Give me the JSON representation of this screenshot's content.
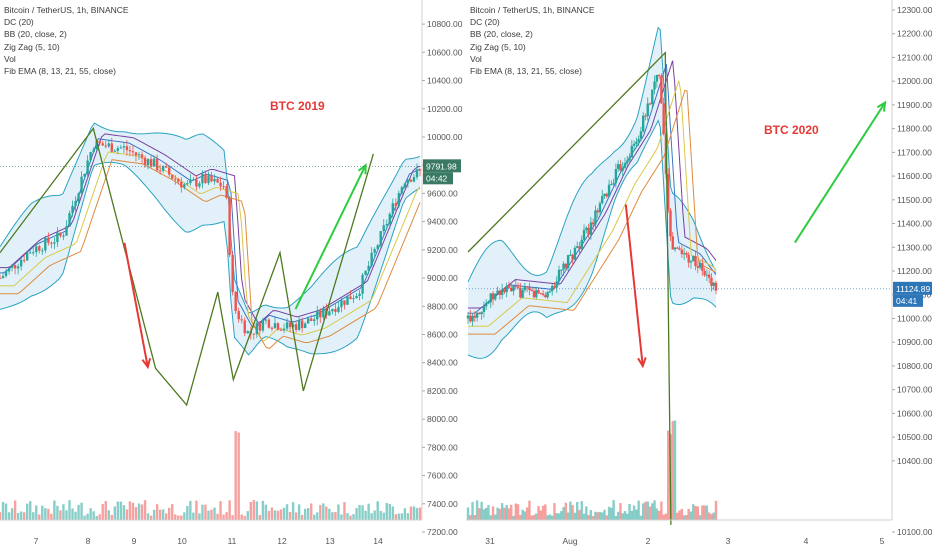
{
  "panes": [
    {
      "id": "left",
      "legend": [
        "Bitcoin / TetherUS, 1h, BINANCE",
        "DC (20)",
        "BB (20, close, 2)",
        "Zig Zag (5, 10)",
        "Vol",
        "Fib EMA (8, 13, 21, 55, close)"
      ],
      "annotation": "BTC 2019",
      "price_label": "9791.98",
      "countdown": "04:42",
      "chart_data": {
        "type": "candlestick",
        "title": "Bitcoin / TetherUS, 1h, BINANCE",
        "ylim": [
          7200,
          10900
        ],
        "y_ticks": [
          "10800.00",
          "10600.00",
          "10400.00",
          "10200.00",
          "10000.00",
          "9800.00",
          "9600.00",
          "9400.00",
          "9200.00",
          "9000.00",
          "8800.00",
          "8600.00",
          "8400.00",
          "8200.00",
          "8000.00",
          "7800.00",
          "7600.00",
          "7400.00",
          "7200.00"
        ],
        "x_ticks": [
          "7",
          "8",
          "9",
          "10",
          "11",
          "12",
          "13",
          "14"
        ],
        "last_price": 9791.98,
        "zigzag_points": [
          [
            6.6,
            9180
          ],
          [
            7.8,
            10060
          ],
          [
            8.6,
            8360
          ],
          [
            9.0,
            8100
          ],
          [
            9.4,
            8900
          ],
          [
            9.6,
            8280
          ],
          [
            10.2,
            9180
          ],
          [
            10.5,
            8200
          ],
          [
            11.4,
            9880
          ]
        ],
        "price_path": [
          [
            6.6,
            9000
          ],
          [
            7.0,
            9200
          ],
          [
            7.4,
            9300
          ],
          [
            7.8,
            9950
          ],
          [
            8.2,
            9920
          ],
          [
            8.6,
            9800
          ],
          [
            9.0,
            9650
          ],
          [
            9.2,
            9700
          ],
          [
            9.5,
            9650
          ],
          [
            9.6,
            8800
          ],
          [
            9.8,
            8600
          ],
          [
            10.0,
            8700
          ],
          [
            10.3,
            8650
          ],
          [
            10.6,
            8700
          ],
          [
            10.9,
            8800
          ],
          [
            11.2,
            8900
          ],
          [
            11.5,
            9300
          ],
          [
            11.8,
            9700
          ],
          [
            12.0,
            9750
          ]
        ],
        "arrows": [
          {
            "color": "#e53935",
            "from": [
              8.2,
              9250
            ],
            "to": [
              8.5,
              8370
            ]
          },
          {
            "color": "#2ecc40",
            "from": [
              10.4,
              8780
            ],
            "to": [
              11.3,
              9800
            ]
          }
        ],
        "volume_spike_x": 9.65
      }
    },
    {
      "id": "right",
      "legend": [
        "Bitcoin / TetherUS, 1h, BINANCE",
        "DC (20)",
        "BB (20, close, 2)",
        "Zig Zag (5, 10)",
        "Vol",
        "Fib EMA (8, 13, 21, 55, close)"
      ],
      "annotation": "BTC 2020",
      "price_label": "11124.89",
      "countdown": "04:41",
      "chart_data": {
        "type": "candlestick",
        "title": "Bitcoin / TetherUS, 1h, BINANCE",
        "ylim": [
          10100,
          12300
        ],
        "y_ticks": [
          "12300.00",
          "12200.00",
          "12100.00",
          "12000.00",
          "11900.00",
          "11800.00",
          "11700.00",
          "11600.00",
          "11500.00",
          "11400.00",
          "11300.00",
          "11200.00",
          "11100.00",
          "11000.00",
          "10900.00",
          "10800.00",
          "10700.00",
          "10600.00",
          "10500.00",
          "10400.00",
          "10100.00"
        ],
        "x_ticks": [
          "31",
          "Aug",
          "2",
          "3",
          "4",
          "5"
        ],
        "last_price": 11124.89,
        "zigzag_points": [
          [
            30.7,
            11280
          ],
          [
            32.45,
            12120
          ],
          [
            32.5,
            10130
          ]
        ],
        "price_path": [
          [
            30.7,
            11000
          ],
          [
            31.0,
            11120
          ],
          [
            31.4,
            11100
          ],
          [
            31.8,
            11400
          ],
          [
            32.0,
            11600
          ],
          [
            32.2,
            11750
          ],
          [
            32.4,
            12050
          ],
          [
            32.5,
            11300
          ],
          [
            32.7,
            11250
          ],
          [
            32.9,
            11124.89
          ]
        ],
        "arrows": [
          {
            "color": "#e53935",
            "from": [
              32.1,
              11480
            ],
            "to": [
              32.25,
              10800
            ]
          },
          {
            "color": "#2ecc40",
            "from": [
              33.6,
              11320
            ],
            "to": [
              34.4,
              11910
            ]
          }
        ],
        "volume_spike_x": 32.5
      }
    }
  ],
  "colors": {
    "zigzag": "#4d7a1f",
    "bb_fill": "#d6ebf7",
    "bb_line": "#2aa3c2",
    "candle_up": "#26a69a",
    "candle_down": "#ef5350",
    "ema_yellow": "#d9c84a",
    "ema_orange": "#e08a3c",
    "ema_purple": "#7a3fa0",
    "ema_blue": "#3a74c9",
    "annotation": "#e53935",
    "axis_text": "#555555",
    "price_tag": "#3a7a64",
    "price_tag_right": "#2d76b8",
    "green_arrow": "#2ecc40",
    "red_arrow": "#e53935"
  }
}
